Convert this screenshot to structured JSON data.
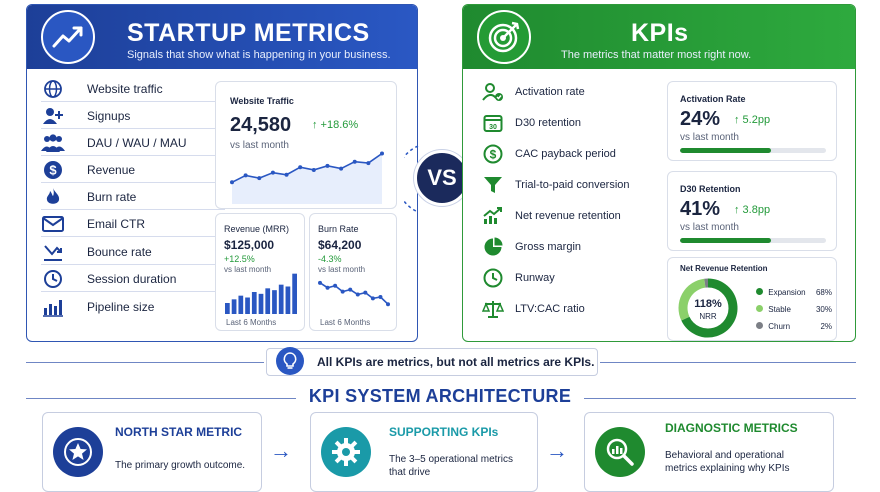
{
  "startup_panel": {
    "title": "STARTUP METRICS",
    "subtitle": "Signals that show what is happening in your business.",
    "accent": "#1d3f98",
    "items": [
      {
        "label": "Website traffic",
        "icon": "globe-icon"
      },
      {
        "label": "Signups",
        "icon": "add-user-icon"
      },
      {
        "label": "DAU / WAU / MAU",
        "icon": "users-icon"
      },
      {
        "label": "Revenue",
        "icon": "dollar-icon"
      },
      {
        "label": "Burn rate",
        "icon": "flame-icon"
      },
      {
        "label": "Email CTR",
        "icon": "mail-icon"
      },
      {
        "label": "Bounce rate",
        "icon": "bounce-arrow-icon"
      },
      {
        "label": "Session duration",
        "icon": "clock-icon"
      },
      {
        "label": "Pipeline size",
        "icon": "bar-chart-icon"
      }
    ],
    "traffic_card": {
      "title": "Website Traffic",
      "value": "24,580",
      "delta": "↑ +18.6%",
      "caption": "vs last month",
      "chart_data": {
        "type": "line",
        "values": [
          2,
          3,
          2.6,
          3.4,
          3.1,
          4.2,
          3.8,
          4.4,
          4.0,
          5.0,
          4.8,
          6.2
        ]
      }
    },
    "mrr_card": {
      "title": "Revenue (MRR)",
      "value": "$125,000",
      "delta": "+12.5%",
      "caption": "vs last month",
      "footer": "Last 6 Months",
      "chart_data": {
        "type": "bar",
        "values": [
          3,
          4,
          5,
          4.5,
          6,
          5.5,
          7,
          6.5,
          8,
          7.5,
          11
        ]
      }
    },
    "burn_card": {
      "title": "Burn Rate",
      "value": "$64,200",
      "delta": "-4.3%",
      "caption": "vs last month",
      "footer": "Last 6 Months",
      "chart_data": {
        "type": "line",
        "values": [
          7,
          6,
          6.4,
          5.2,
          5.6,
          4.6,
          5.0,
          3.8,
          4.1,
          2.6
        ]
      }
    }
  },
  "vs_label": "VS",
  "kpi_panel": {
    "title": "KPIs",
    "subtitle": "The metrics that matter most right now.",
    "accent": "#1f8a2f",
    "items": [
      {
        "label": "Activation rate",
        "icon": "user-check-icon"
      },
      {
        "label": "D30 retention",
        "icon": "calendar-icon"
      },
      {
        "label": "CAC payback period",
        "icon": "dollar-icon"
      },
      {
        "label": "Trial-to-paid conversion",
        "icon": "funnel-icon"
      },
      {
        "label": "Net revenue retention",
        "icon": "trend-up-icon"
      },
      {
        "label": "Gross margin",
        "icon": "pie-chart-icon"
      },
      {
        "label": "Runway",
        "icon": "clock-icon"
      },
      {
        "label": "LTV:CAC ratio",
        "icon": "scale-icon"
      }
    ],
    "activation_card": {
      "title": "Activation Rate",
      "value": "24%",
      "delta": "↑ 5.2pp",
      "caption": "vs last month",
      "progress": 0.62
    },
    "d30_card": {
      "title": "D30 Retention",
      "value": "41%",
      "delta": "↑ 3.8pp",
      "caption": "vs last month",
      "progress": 0.62
    },
    "nrr_card": {
      "title": "Net Revenue Retention",
      "value": "118%",
      "value_label": "NRR",
      "legend": [
        {
          "label": "Expansion",
          "pct": "68%",
          "value": 68,
          "color": "#1f8a2f"
        },
        {
          "label": "Stable",
          "pct": "30%",
          "value": 30,
          "color": "#8bd06a"
        },
        {
          "label": "Churn",
          "pct": "2%",
          "value": 2,
          "color": "#7c7f86"
        }
      ]
    }
  },
  "callout": "All KPIs are metrics, but not all metrics are KPIs.",
  "architecture": {
    "title": "KPI SYSTEM ARCHITECTURE",
    "cards": [
      {
        "heading": "NORTH STAR METRIC",
        "body": "The primary growth outcome.",
        "color": "#1d3f98",
        "icon": "star-icon"
      },
      {
        "heading": "SUPPORTING KPIs",
        "body": "The 3–5 operational metrics that drive",
        "color": "#1a9aa8",
        "icon": "gear-icon"
      },
      {
        "heading": "DIAGNOSTIC METRICS",
        "body": "Behavioral and operational metrics explaining why KPIs",
        "color": "#1f8a2f",
        "icon": "magnifier-chart-icon"
      }
    ]
  }
}
